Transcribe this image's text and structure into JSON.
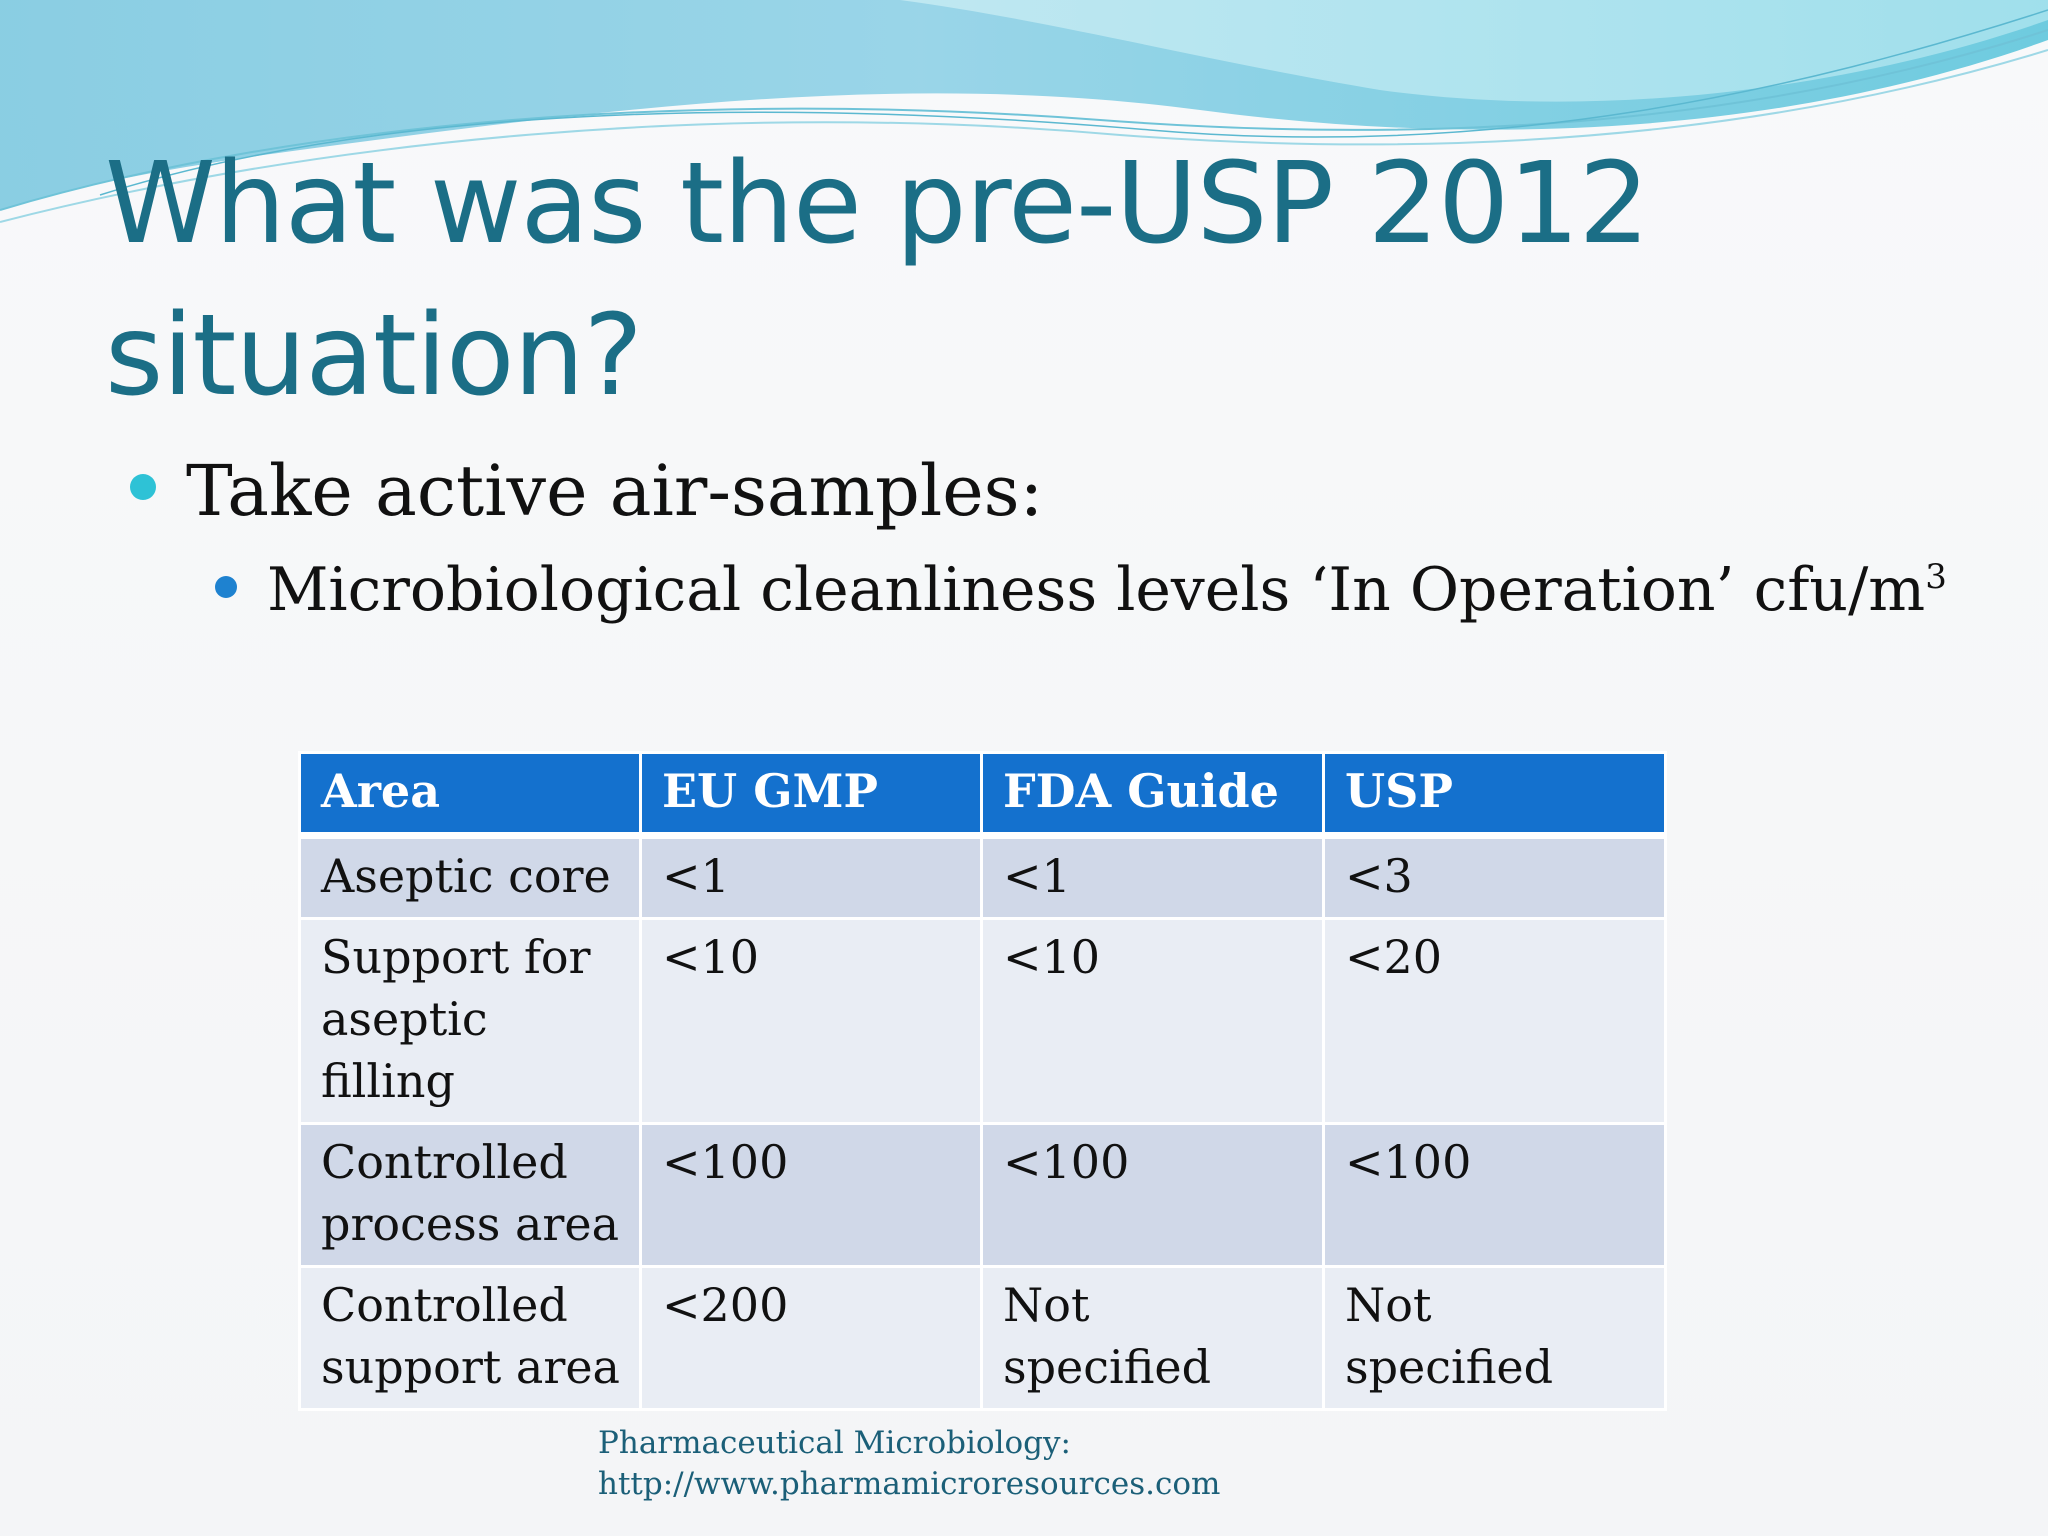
{
  "slide": {
    "title_line1": "What was the pre-USP 2012",
    "title_line2": "situation?",
    "bullet1": "Take active air-samples:",
    "bullet2_text": "Microbiological cleanliness levels ‘In Operation’ cfu/m",
    "bullet2_sup": "3"
  },
  "table": {
    "headers": [
      "Area",
      "EU GMP",
      "FDA Guide",
      "USP"
    ],
    "rows": [
      {
        "area_line1": "Aseptic core",
        "area_line2": "",
        "eu_gmp": "<1",
        "fda_guide": "<1",
        "usp": "<3"
      },
      {
        "area_line1": "Support for",
        "area_line2": "aseptic filling",
        "eu_gmp": "<10",
        "fda_guide": "<10",
        "usp": "<20"
      },
      {
        "area_line1": "Controlled",
        "area_line2": "process area",
        "eu_gmp": "<100",
        "fda_guide": "<100",
        "usp": "<100"
      },
      {
        "area_line1": "Controlled",
        "area_line2": "support area",
        "eu_gmp": "<200",
        "fda_guide": "Not specified",
        "usp": "Not specified"
      }
    ]
  },
  "footer": {
    "line1": "Pharmaceutical Microbiology:",
    "line2": "http://www.pharmamicroresources.com"
  },
  "colors": {
    "title": "#1b6e86",
    "header_bg": "#1471ce",
    "row_odd": "#d0d8e8",
    "row_even": "#e9edf4",
    "bullet1_dot": "#2ec2d6",
    "bullet2_dot": "#1e82d0"
  }
}
